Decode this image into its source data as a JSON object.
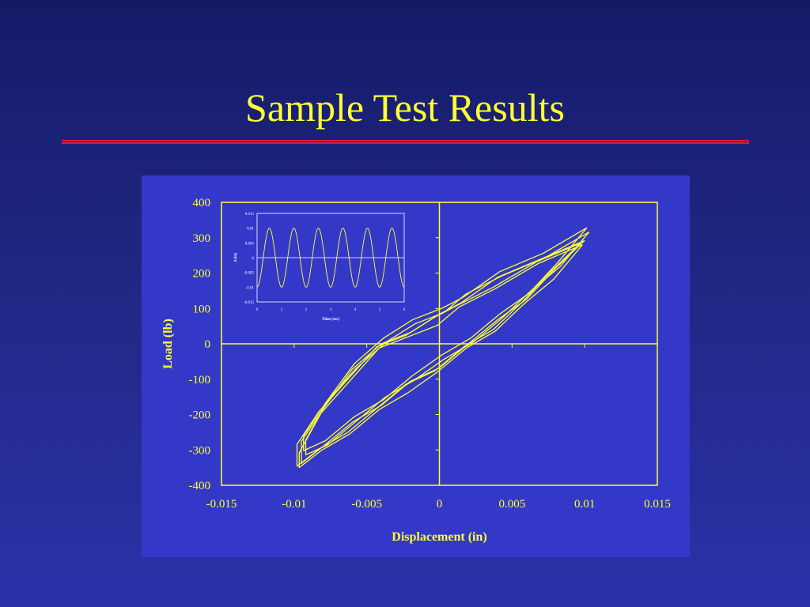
{
  "slide": {
    "title": "Sample Test Results",
    "colors": {
      "background": "#1f2680",
      "panel": "#3338c9",
      "accent": "#ffff33",
      "rule": "#d21f3c"
    }
  },
  "chart_data": [
    {
      "type": "line",
      "title": "",
      "xlabel": "Displacement (in)",
      "ylabel": "Load (lb)",
      "xlim": [
        -0.015,
        0.015
      ],
      "ylim": [
        -400,
        400
      ],
      "x_ticks": [
        "-0.015",
        "-0.01",
        "-0.005",
        "0",
        "0.005",
        "0.01",
        "0.015"
      ],
      "y_ticks": [
        "400",
        "300",
        "200",
        "100",
        "0",
        "-100",
        "-200",
        "-300",
        "-400"
      ],
      "grid": false,
      "series": [
        {
          "color": "#ffff33",
          "x": [
            0.01,
            0.007,
            0.004,
            0.0015,
            0.0,
            -0.002,
            -0.004,
            -0.006,
            -0.008,
            -0.0095,
            -0.0095,
            -0.008,
            -0.006,
            -0.004,
            -0.002,
            0.0,
            0.002,
            0.004,
            0.006,
            0.008,
            0.01
          ],
          "y": [
            300,
            240,
            180,
            120,
            80,
            40,
            0,
            -80,
            -180,
            -280,
            -330,
            -290,
            -230,
            -170,
            -110,
            -60,
            0,
            60,
            130,
            210,
            300
          ]
        }
      ]
    },
    {
      "type": "line",
      "title": "",
      "xlabel": "Time (sec)",
      "ylabel": "Δ (in)",
      "xlim": [
        0,
        6
      ],
      "ylim": [
        -0.015,
        0.015
      ],
      "x_ticks": [
        "0",
        "1",
        "2",
        "3",
        "4",
        "5",
        "6"
      ],
      "y_ticks": [
        "0.015",
        "0.01",
        "0.005",
        "0",
        "-0.005",
        "-0.01",
        "-0.015"
      ],
      "series": [
        {
          "color": "#ffff33",
          "x": [
            0,
            0.25,
            0.5,
            0.75,
            1.0,
            1.25,
            1.5,
            1.75,
            2.0,
            2.25,
            2.5,
            2.75,
            3.0,
            3.25,
            3.5,
            3.75,
            4.0,
            4.25,
            4.5,
            4.75,
            5.0,
            5.25,
            5.5,
            5.75,
            6.0
          ],
          "y": [
            -0.01,
            0,
            0.01,
            0,
            -0.01,
            0,
            0.01,
            0,
            -0.01,
            0,
            0.01,
            0,
            -0.01,
            0,
            0.01,
            0,
            -0.01,
            0,
            0.01,
            0,
            -0.01,
            0,
            0.01,
            0,
            -0.01
          ]
        }
      ]
    }
  ]
}
